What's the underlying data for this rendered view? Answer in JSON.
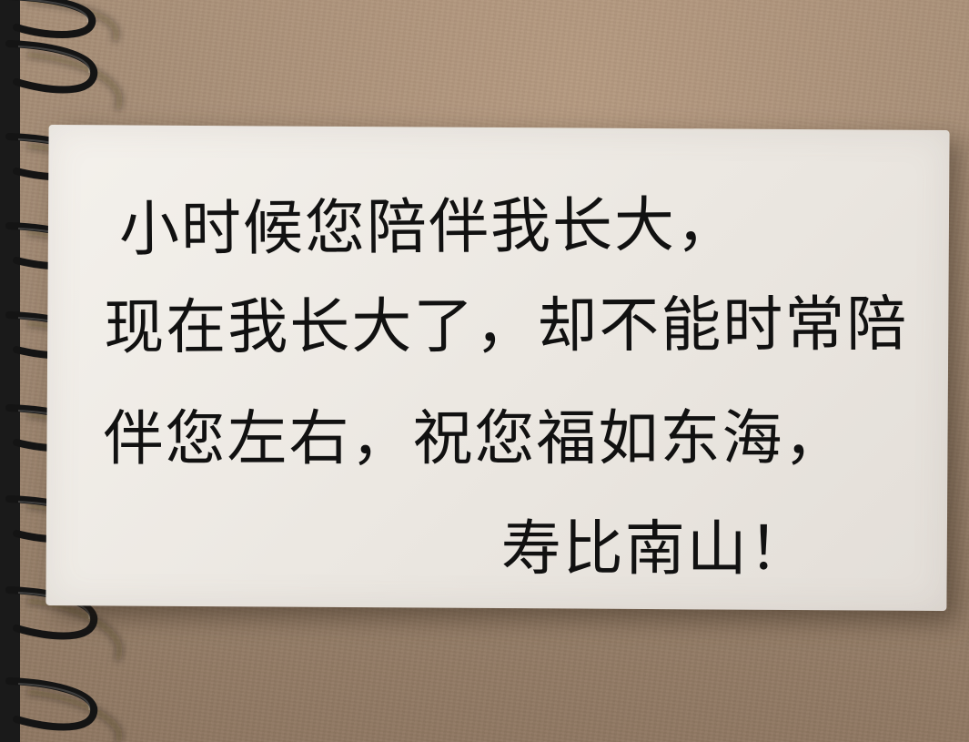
{
  "note": {
    "lines": [
      "小时候您陪伴我长大，",
      "现在我长大了，却不能时常陪",
      "伴您左右，祝您福如东海，",
      "寿比南山！"
    ]
  },
  "colors": {
    "background": "#9e8670",
    "card": "#efebe6",
    "ink": "#111111",
    "spiral": "#151515"
  },
  "icons": {
    "binding": "notebook-spiral-binding"
  }
}
